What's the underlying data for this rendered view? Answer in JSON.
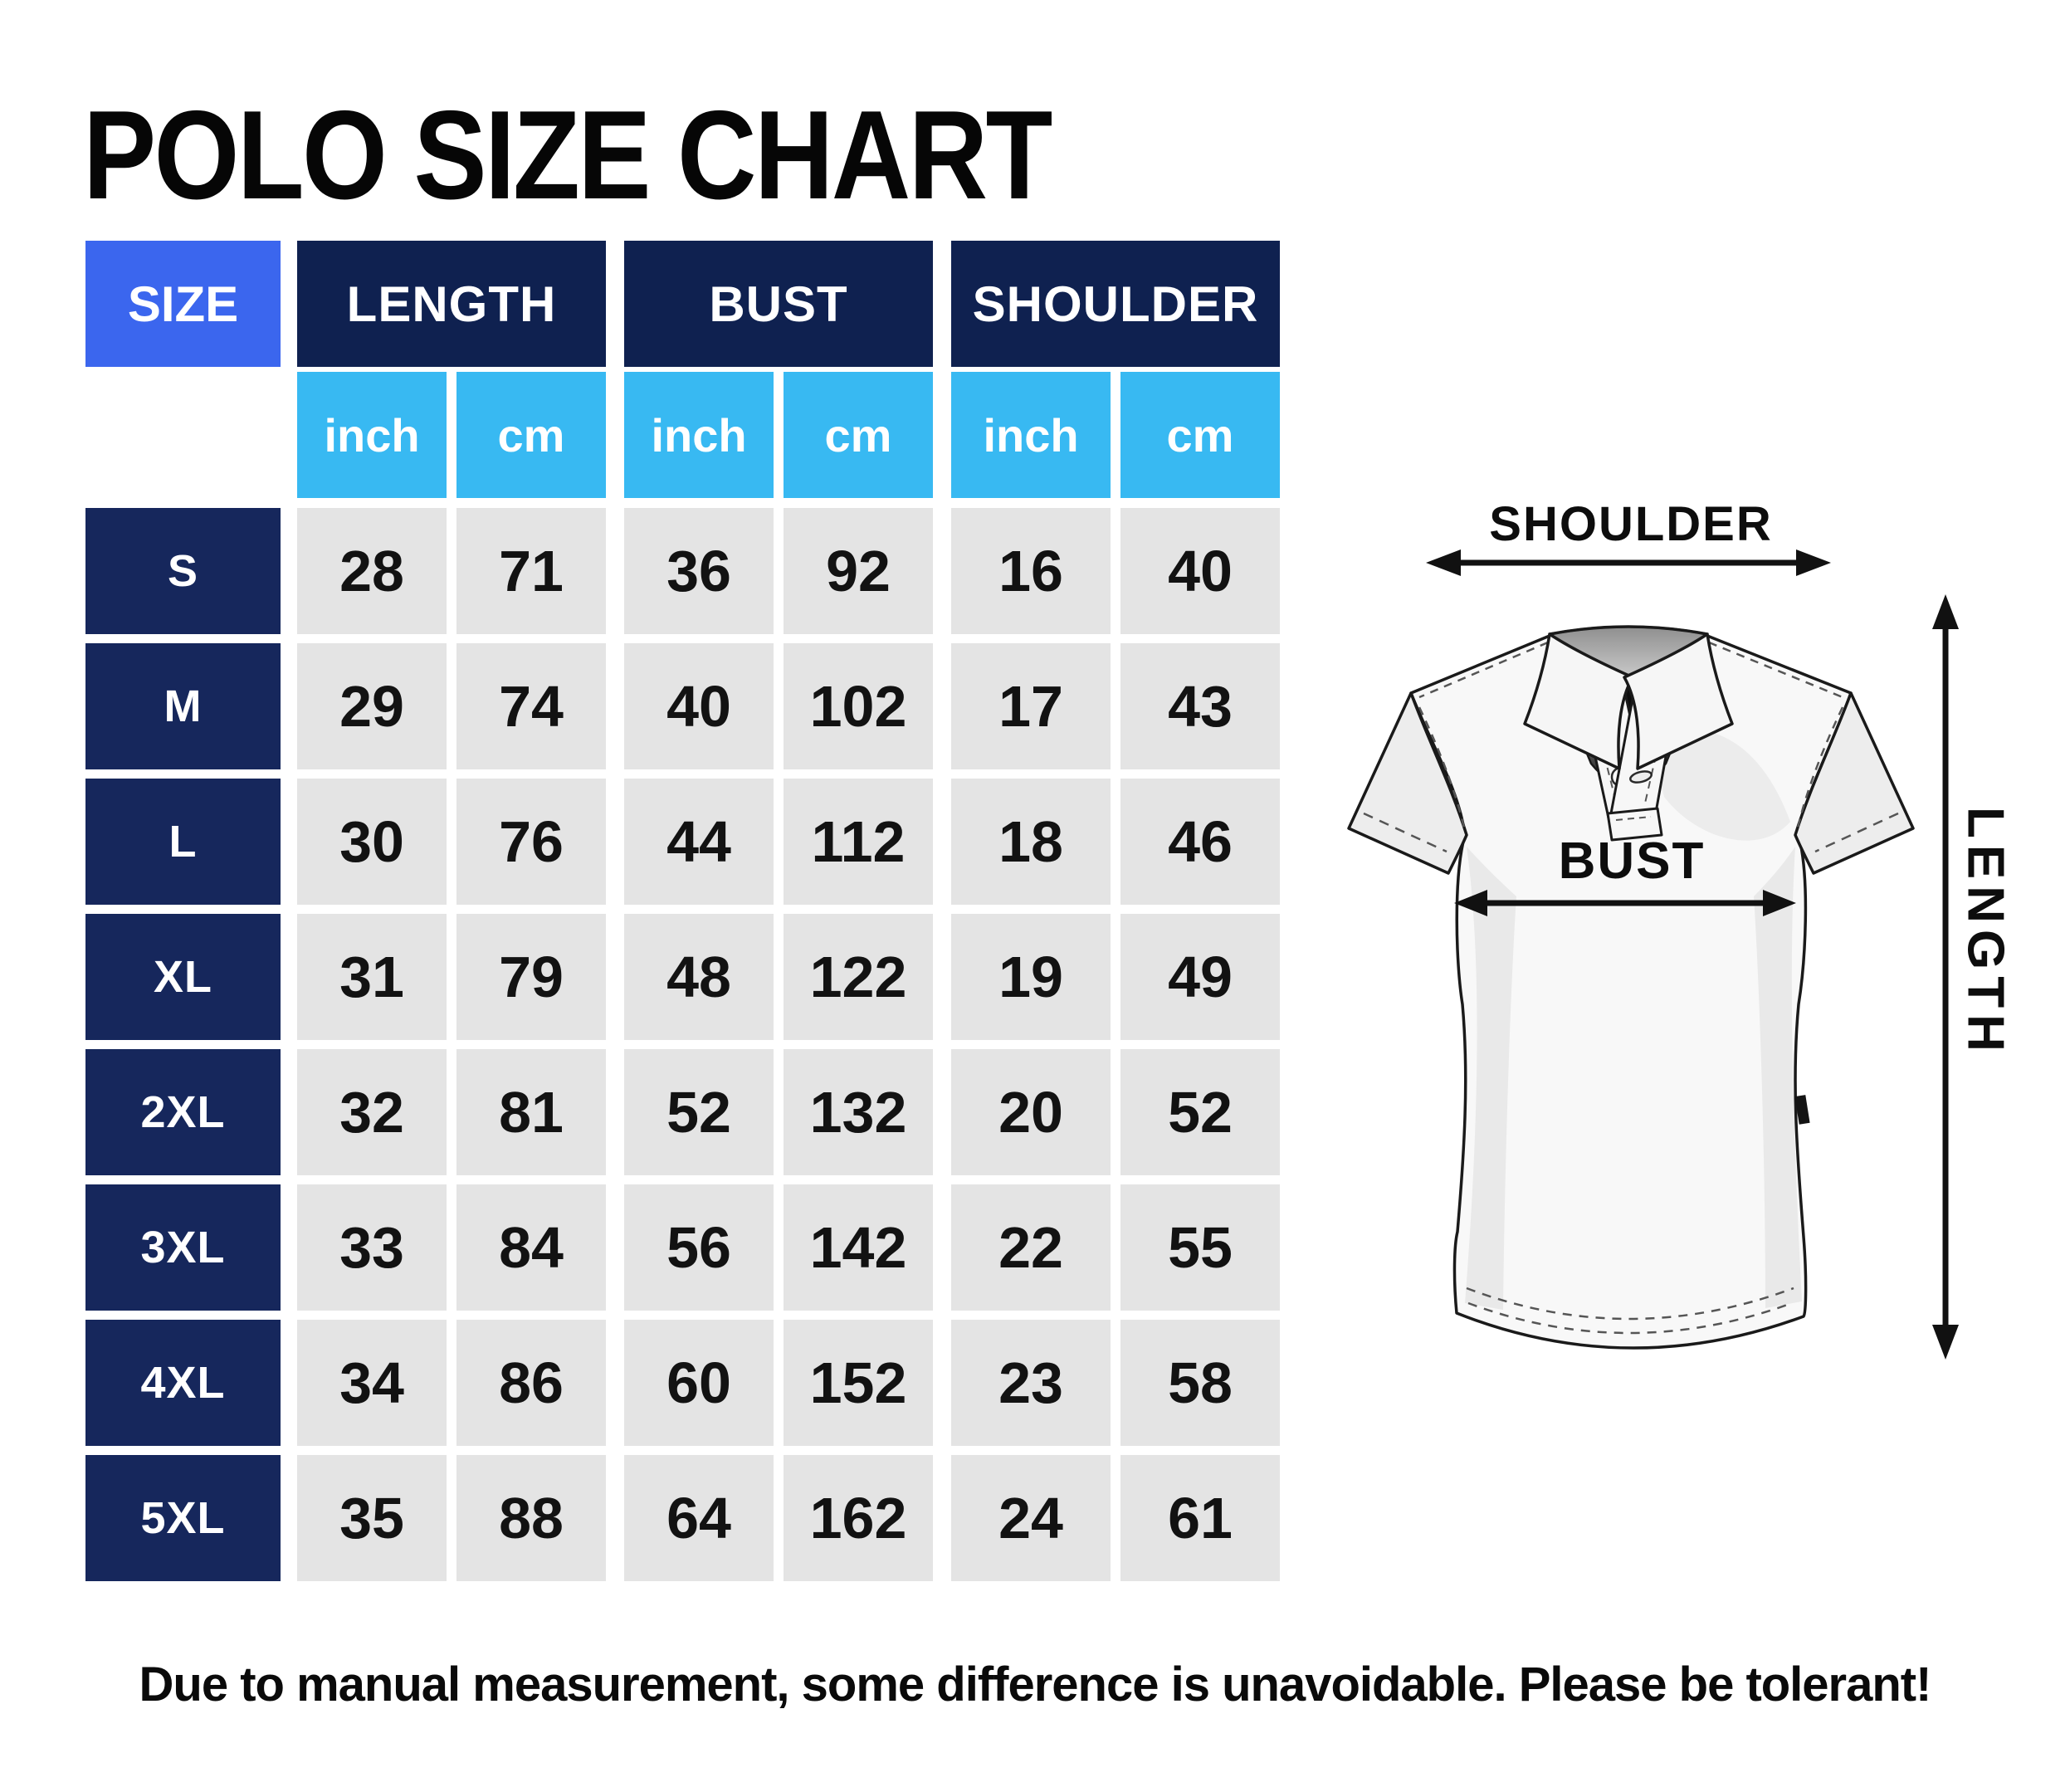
{
  "title": "POLO SIZE CHART",
  "table": {
    "size_header": "SIZE",
    "groups": [
      "LENGTH",
      "BUST",
      "SHOULDER"
    ],
    "units": [
      "inch",
      "cm",
      "inch",
      "cm",
      "inch",
      "cm"
    ],
    "rows": [
      {
        "size": "S",
        "values": [
          "28",
          "71",
          "36",
          "92",
          "16",
          "40"
        ]
      },
      {
        "size": "M",
        "values": [
          "29",
          "74",
          "40",
          "102",
          "17",
          "43"
        ]
      },
      {
        "size": "L",
        "values": [
          "30",
          "76",
          "44",
          "112",
          "18",
          "46"
        ]
      },
      {
        "size": "XL",
        "values": [
          "31",
          "79",
          "48",
          "122",
          "19",
          "49"
        ]
      },
      {
        "size": "2XL",
        "values": [
          "32",
          "81",
          "52",
          "132",
          "20",
          "52"
        ]
      },
      {
        "size": "3XL",
        "values": [
          "33",
          "84",
          "56",
          "142",
          "22",
          "55"
        ]
      },
      {
        "size": "4XL",
        "values": [
          "34",
          "86",
          "60",
          "152",
          "23",
          "58"
        ]
      },
      {
        "size": "5XL",
        "values": [
          "35",
          "88",
          "64",
          "162",
          "24",
          "61"
        ]
      }
    ]
  },
  "diagram": {
    "shoulder_label": "SHOULDER",
    "bust_label": "BUST",
    "length_label": "LENGTH"
  },
  "footnote": "Due to manual measurement, some difference is unavoidable. Please be tolerant!",
  "colors": {
    "size_header_bg": "#3b66ee",
    "group_header_bg": "#0f2150",
    "size_label_bg": "#16275c",
    "unit_header_bg": "#38b9f2",
    "data_cell_bg": "#e4e4e4",
    "header_text": "#ffffff",
    "data_text": "#121212"
  },
  "chart_data": {
    "type": "table",
    "title": "POLO SIZE CHART",
    "columns": [
      "SIZE",
      "LENGTH inch",
      "LENGTH cm",
      "BUST inch",
      "BUST cm",
      "SHOULDER inch",
      "SHOULDER cm"
    ],
    "rows": [
      [
        "S",
        28,
        71,
        36,
        92,
        16,
        40
      ],
      [
        "M",
        29,
        74,
        40,
        102,
        17,
        43
      ],
      [
        "L",
        30,
        76,
        44,
        112,
        18,
        46
      ],
      [
        "XL",
        31,
        79,
        48,
        122,
        19,
        49
      ],
      [
        "2XL",
        32,
        81,
        52,
        132,
        20,
        52
      ],
      [
        "3XL",
        33,
        84,
        56,
        142,
        22,
        55
      ],
      [
        "4XL",
        34,
        86,
        60,
        152,
        23,
        58
      ],
      [
        "5XL",
        35,
        88,
        64,
        162,
        24,
        61
      ]
    ],
    "footnote": "Due to manual measurement, some difference is unavoidable. Please be tolerant!"
  }
}
